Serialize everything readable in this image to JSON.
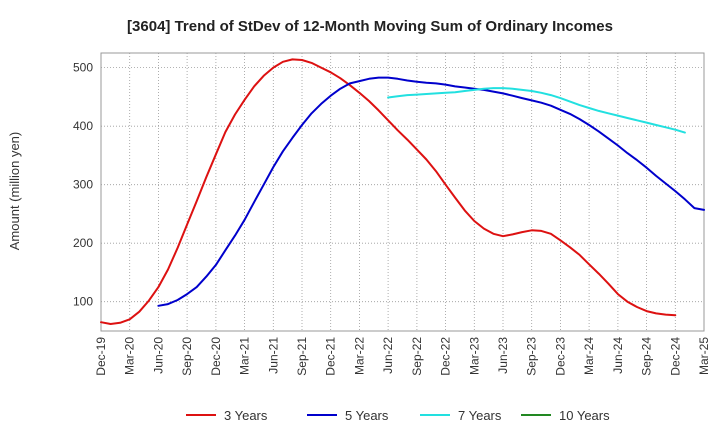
{
  "chart_data": {
    "type": "line",
    "title": "[3604]  Trend of StDev of 12-Month Moving Sum of Ordinary Incomes",
    "xlabel": "",
    "ylabel": "Amount (million yen)",
    "ylim": [
      50,
      525
    ],
    "y_ticks": [
      100,
      200,
      300,
      400,
      500
    ],
    "x_tick_labels": [
      "Dec-19",
      "Mar-20",
      "Jun-20",
      "Sep-20",
      "Dec-20",
      "Mar-21",
      "Jun-21",
      "Sep-21",
      "Dec-21",
      "Mar-22",
      "Jun-22",
      "Sep-22",
      "Dec-22",
      "Mar-23",
      "Jun-23",
      "Sep-23",
      "Dec-23",
      "Mar-24",
      "Jun-24",
      "Sep-24",
      "Dec-24",
      "Mar-25"
    ],
    "grid": true,
    "legend_position": "bottom",
    "series": [
      {
        "name": "3 Years",
        "color": "#dd1111",
        "start_index": 0,
        "values": [
          65,
          62,
          64,
          70,
          83,
          102,
          125,
          155,
          192,
          232,
          272,
          313,
          352,
          390,
          420,
          445,
          468,
          486,
          500,
          510,
          514,
          513,
          508,
          500,
          492,
          482,
          470,
          457,
          443,
          427,
          410,
          393,
          377,
          360,
          343,
          323,
          300,
          278,
          256,
          238,
          225,
          216,
          212,
          215,
          219,
          222,
          221,
          216,
          205,
          193,
          180,
          164,
          148,
          131,
          113,
          100,
          91,
          84,
          80,
          78,
          77
        ]
      },
      {
        "name": "5 Years",
        "color": "#0000cc",
        "start_index": 6,
        "values": [
          93,
          96,
          103,
          113,
          125,
          143,
          163,
          188,
          213,
          240,
          270,
          300,
          330,
          357,
          380,
          402,
          422,
          438,
          452,
          464,
          473,
          477,
          481,
          483,
          483,
          481,
          478,
          476,
          474,
          473,
          471,
          468,
          466,
          464,
          462,
          459,
          456,
          452,
          448,
          444,
          440,
          435,
          428,
          421,
          412,
          402,
          391,
          379,
          367,
          354,
          342,
          329,
          315,
          302,
          289,
          275,
          260,
          257
        ]
      },
      {
        "name": "7 Years",
        "color": "#22e0e0",
        "start_index": 30,
        "values": [
          449,
          451,
          453,
          454,
          455,
          456,
          457,
          458,
          460,
          462,
          464,
          465,
          465,
          464,
          462,
          460,
          457,
          453,
          448,
          442,
          436,
          431,
          426,
          422,
          418,
          414,
          410,
          406,
          402,
          398,
          394,
          389
        ]
      },
      {
        "name": "10 Years",
        "color": "#228822",
        "start_index": 0,
        "values": []
      }
    ]
  }
}
